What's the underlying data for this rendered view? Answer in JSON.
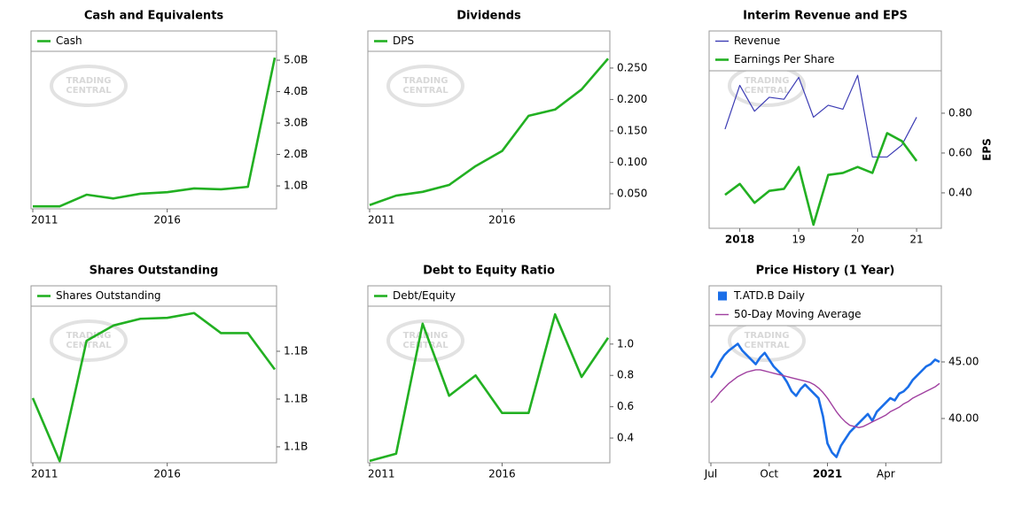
{
  "watermark_lines": [
    "TRADING",
    "CENTRAL"
  ],
  "chart_data": [
    {
      "type": "line",
      "title": "Cash and Equivalents",
      "x": [
        2011,
        2012,
        2013,
        2014,
        2015,
        2016,
        2017,
        2018,
        2019,
        2020
      ],
      "xlim": [
        2011,
        2020
      ],
      "xticks": [
        2011,
        2016
      ],
      "series": [
        {
          "name": "Cash",
          "color": "#22b022",
          "values": [
            350000000,
            350000000,
            720000000,
            600000000,
            750000000,
            800000000,
            920000000,
            890000000,
            970000000,
            5080000000
          ]
        }
      ],
      "ylim": [
        270000000,
        5930000000
      ],
      "yticks": [
        {
          "value": 1000000000,
          "label": "1.0B"
        },
        {
          "value": 2000000000,
          "label": "2.0B"
        },
        {
          "value": 3000000000,
          "label": "3.0B"
        },
        {
          "value": 4000000000,
          "label": "4.0B"
        },
        {
          "value": 5000000000,
          "label": "5.0B"
        }
      ]
    },
    {
      "type": "line",
      "title": "Dividends",
      "x": [
        2011,
        2012,
        2013,
        2014,
        2015,
        2016,
        2017,
        2018,
        2019,
        2020
      ],
      "xlim": [
        2011,
        2020
      ],
      "xticks": [
        2011,
        2016
      ],
      "series": [
        {
          "name": "DPS",
          "color": "#22b022",
          "values": [
            0.032,
            0.047,
            0.053,
            0.064,
            0.094,
            0.118,
            0.174,
            0.184,
            0.216,
            0.265
          ]
        }
      ],
      "ylim": [
        0.026,
        0.309
      ],
      "yticks": [
        {
          "value": 0.05,
          "label": "0.050"
        },
        {
          "value": 0.1,
          "label": "0.100"
        },
        {
          "value": 0.15,
          "label": "0.150"
        },
        {
          "value": 0.2,
          "label": "0.200"
        },
        {
          "value": 0.25,
          "label": "0.250"
        }
      ]
    },
    {
      "type": "line",
      "title": "Interim Revenue and EPS",
      "ylabel": "EPS",
      "x": [
        2017.75,
        2018,
        2018.25,
        2018.5,
        2018.75,
        2019,
        2019.25,
        2019.5,
        2019.75,
        2020,
        2020.25,
        2020.5,
        2020.75,
        2021
      ],
      "xlim": [
        2017.51,
        2021.39
      ],
      "xticks": [
        {
          "value": 2018,
          "label": "2018",
          "bold": true
        },
        {
          "value": 2019,
          "label": "19"
        },
        {
          "value": 2020,
          "label": "20"
        },
        {
          "value": 2021,
          "label": "21"
        }
      ],
      "series": [
        {
          "name": "Revenue",
          "color": "#3c3cb4",
          "width": 1.2,
          "values": [
            0.72,
            0.94,
            0.81,
            0.88,
            0.87,
            0.98,
            0.78,
            0.84,
            0.82,
            0.99,
            0.58,
            0.58,
            0.64,
            0.78
          ]
        },
        {
          "name": "Earnings Per Share",
          "color": "#22b022",
          "values": [
            0.39,
            0.445,
            0.35,
            0.41,
            0.42,
            0.53,
            0.24,
            0.49,
            0.5,
            0.53,
            0.5,
            0.7,
            0.66,
            0.56
          ]
        }
      ],
      "ylim": [
        0.222,
        1.213
      ],
      "yticks": [
        {
          "value": 0.4,
          "label": "0.40"
        },
        {
          "value": 0.6,
          "label": "0.60"
        },
        {
          "value": 0.8,
          "label": "0.80"
        }
      ]
    },
    {
      "type": "line",
      "title": "Shares Outstanding",
      "x": [
        2011,
        2012,
        2013,
        2014,
        2015,
        2016,
        2017,
        2018,
        2019,
        2020
      ],
      "xlim": [
        2011,
        2020
      ],
      "xticks": [
        2011,
        2016
      ],
      "series": [
        {
          "name": "Shares Outstanding",
          "color": "#22b022",
          "values": [
            1110100000,
            1103500000,
            1116100000,
            1117700000,
            1118400000,
            1118500000,
            1119000000,
            1116900000,
            1116900000,
            1113100000
          ]
        }
      ],
      "ylim": [
        1103330000,
        1121850000
      ],
      "yticks": [
        {
          "value": 1105000000,
          "label": "1.1B"
        },
        {
          "value": 1110000000,
          "label": "1.1B"
        },
        {
          "value": 1115000000,
          "label": "1.1B"
        }
      ]
    },
    {
      "type": "line",
      "title": "Debt to Equity Ratio",
      "x": [
        2011,
        2012,
        2013,
        2014,
        2015,
        2016,
        2017,
        2018,
        2019,
        2020
      ],
      "xlim": [
        2011,
        2020
      ],
      "xticks": [
        2011,
        2016
      ],
      "series": [
        {
          "name": "Debt/Equity",
          "color": "#22b022",
          "values": [
            0.254,
            0.3,
            1.13,
            0.67,
            0.8,
            0.56,
            0.56,
            1.19,
            0.79,
            1.04
          ]
        }
      ],
      "ylim": [
        0.242,
        1.372
      ],
      "yticks": [
        0.4,
        0.6,
        0.8,
        {
          "value": 1.0,
          "label": "1.0"
        }
      ]
    },
    {
      "type": "line",
      "title": "Price History (1 Year)",
      "categories": [
        "Jul",
        null,
        null,
        null,
        null,
        null,
        null,
        null,
        null,
        null,
        null,
        null,
        null,
        "Oct",
        null,
        null,
        null,
        null,
        null,
        null,
        null,
        null,
        null,
        null,
        null,
        null,
        "2021",
        null,
        null,
        null,
        null,
        null,
        null,
        null,
        null,
        null,
        null,
        null,
        null,
        "Apr",
        null,
        null,
        null,
        null,
        null,
        null,
        null,
        null,
        null,
        null,
        null,
        null
      ],
      "bold_category": 26,
      "series": [
        {
          "name": "T.ATD.B Daily",
          "color": "#1a6ee8",
          "width": 2.6,
          "legend_marker": "square",
          "values": [
            43.6,
            44.2,
            45.0,
            45.6,
            46.0,
            46.3,
            46.6,
            46.0,
            45.6,
            45.2,
            44.8,
            45.4,
            45.8,
            45.2,
            44.6,
            44.2,
            43.8,
            43.2,
            42.4,
            42.0,
            42.6,
            43.0,
            42.6,
            42.2,
            41.8,
            40.2,
            37.8,
            37.0,
            36.6,
            37.6,
            38.2,
            38.8,
            39.2,
            39.6,
            40.0,
            40.4,
            39.8,
            40.6,
            41.0,
            41.4,
            41.8,
            41.6,
            42.2,
            42.4,
            42.8,
            43.4,
            43.8,
            44.2,
            44.6,
            44.8,
            45.2,
            45.0
          ]
        },
        {
          "name": "50-Day Moving Average",
          "color": "#a040a0",
          "width": 1.4,
          "values": [
            41.4,
            41.8,
            42.3,
            42.7,
            43.1,
            43.4,
            43.7,
            43.9,
            44.1,
            44.2,
            44.3,
            44.3,
            44.2,
            44.1,
            44.0,
            43.9,
            43.8,
            43.7,
            43.6,
            43.5,
            43.4,
            43.3,
            43.2,
            43.0,
            42.7,
            42.3,
            41.8,
            41.2,
            40.6,
            40.1,
            39.7,
            39.4,
            39.3,
            39.2,
            39.3,
            39.5,
            39.7,
            39.9,
            40.1,
            40.3,
            40.6,
            40.8,
            41.0,
            41.3,
            41.5,
            41.8,
            42.0,
            42.2,
            42.4,
            42.6,
            42.8,
            43.1
          ]
        }
      ],
      "ylim": [
        36.09,
        51.72
      ],
      "yticks": [
        {
          "value": 40,
          "label": "40.00"
        },
        {
          "value": 45,
          "label": "45.00"
        }
      ]
    }
  ]
}
